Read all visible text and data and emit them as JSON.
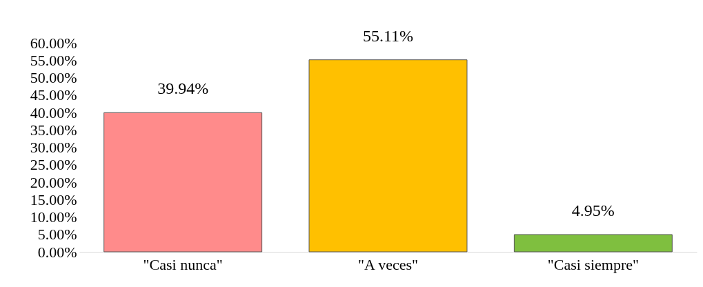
{
  "chart_data": {
    "type": "bar",
    "categories": [
      "\"Casi nunca\"",
      "\"A veces\"",
      "\"Casi siempre\""
    ],
    "values": [
      39.94,
      55.11,
      4.95
    ],
    "colors": [
      "#ff8b8b",
      "#ffc000",
      "#7fbf3f"
    ],
    "value_labels": [
      "39.94%",
      "55.11%",
      "4.95%"
    ],
    "ylim": [
      0,
      60
    ],
    "yticks": [
      {
        "value": 0,
        "label": "0.00%"
      },
      {
        "value": 5,
        "label": "5.00%"
      },
      {
        "value": 10,
        "label": "10.00%"
      },
      {
        "value": 15,
        "label": "15.00%"
      },
      {
        "value": 20,
        "label": "20.00%"
      },
      {
        "value": 25,
        "label": "25.00%"
      },
      {
        "value": 30,
        "label": "30.00%"
      },
      {
        "value": 35,
        "label": "35.00%"
      },
      {
        "value": 40,
        "label": "40.00%"
      },
      {
        "value": 45,
        "label": "45.00%"
      },
      {
        "value": 50,
        "label": "50.00%"
      },
      {
        "value": 55,
        "label": "55.00%"
      },
      {
        "value": 60,
        "label": "60.00%"
      }
    ],
    "grid": false
  }
}
